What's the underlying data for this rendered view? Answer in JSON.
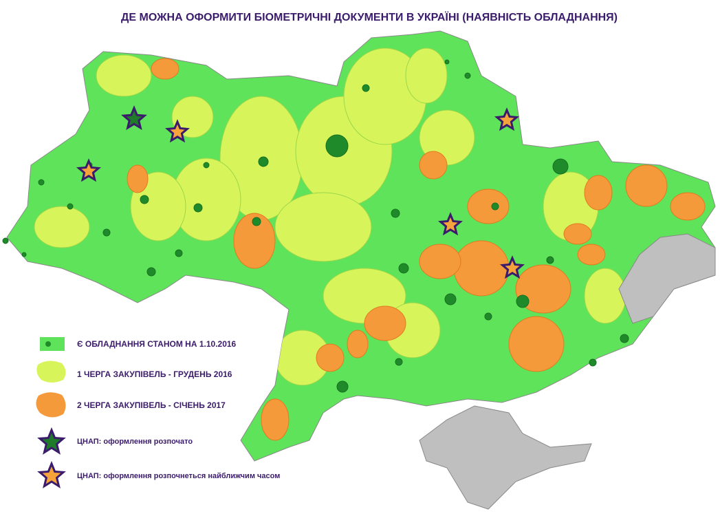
{
  "header": {
    "title": "ДЕ МОЖНА ОФОРМИТИ БІОМЕТРИЧНІ ДОКУМЕНТИ В УКРАЇНІ (НАЯВНІСТЬ ОБЛАДНАННЯ)"
  },
  "legend": {
    "items": [
      {
        "label": "Є ОБЛАДНАННЯ СТАНОМ НА 1.10.2016"
      },
      {
        "label": "1 ЧЕРГА ЗАКУПІВЕЛЬ - ГРУДЕНЬ 2016"
      },
      {
        "label": "2 ЧЕРГА ЗАКУПІВЕЛЬ - СІЧЕНЬ 2017"
      },
      {
        "label": "ЦНАП: оформлення розпочато"
      },
      {
        "label": "ЦНАП: оформлення розпочнеться найближчим часом"
      }
    ]
  }
}
